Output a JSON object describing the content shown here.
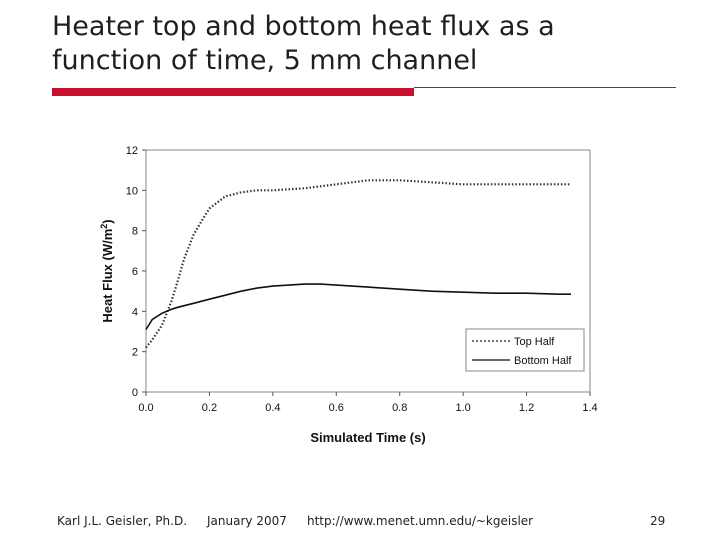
{
  "slide": {
    "title": "Heater top and bottom heat flux as a function of time, 5 mm channel",
    "footer": {
      "author": "Karl J.L. Geisler, Ph.D.",
      "date": "January 2007",
      "url": "http://www.menet.umn.edu/~kgeisler",
      "page": "29"
    },
    "accent_color": "#c8102e"
  },
  "chart_data": {
    "type": "line",
    "xlabel": "Simulated Time (s)",
    "ylabel": "Heat Flux (W/m2)",
    "ylabel_main": "Heat Flux (W/m",
    "ylabel_sup": "2",
    "ylabel_close": ")",
    "xlim": [
      0.0,
      1.4
    ],
    "ylim": [
      0,
      12
    ],
    "xticks": [
      "0.0",
      "0.2",
      "0.4",
      "0.6",
      "0.8",
      "1.0",
      "1.2",
      "1.4"
    ],
    "yticks": [
      "0",
      "2",
      "4",
      "6",
      "8",
      "10",
      "12"
    ],
    "grid": false,
    "legend_placement": "bottom-right",
    "series": [
      {
        "name": "Top Half",
        "style": "dotted",
        "x": [
          0.0,
          0.02,
          0.05,
          0.08,
          0.1,
          0.12,
          0.15,
          0.18,
          0.2,
          0.25,
          0.3,
          0.35,
          0.4,
          0.5,
          0.6,
          0.7,
          0.8,
          0.9,
          1.0,
          1.1,
          1.2,
          1.3,
          1.34
        ],
        "y": [
          2.2,
          2.6,
          3.3,
          4.5,
          5.5,
          6.6,
          7.8,
          8.6,
          9.1,
          9.7,
          9.9,
          10.0,
          10.0,
          10.1,
          10.3,
          10.5,
          10.5,
          10.4,
          10.3,
          10.3,
          10.3,
          10.3,
          10.3
        ]
      },
      {
        "name": "Bottom Half",
        "style": "solid",
        "x": [
          0.0,
          0.02,
          0.05,
          0.08,
          0.1,
          0.15,
          0.2,
          0.25,
          0.3,
          0.35,
          0.4,
          0.45,
          0.5,
          0.55,
          0.6,
          0.7,
          0.8,
          0.9,
          1.0,
          1.1,
          1.2,
          1.3,
          1.34
        ],
        "y": [
          3.1,
          3.6,
          3.9,
          4.1,
          4.2,
          4.4,
          4.6,
          4.8,
          5.0,
          5.15,
          5.25,
          5.3,
          5.35,
          5.35,
          5.3,
          5.2,
          5.1,
          5.0,
          4.95,
          4.9,
          4.9,
          4.85,
          4.85
        ]
      }
    ]
  }
}
